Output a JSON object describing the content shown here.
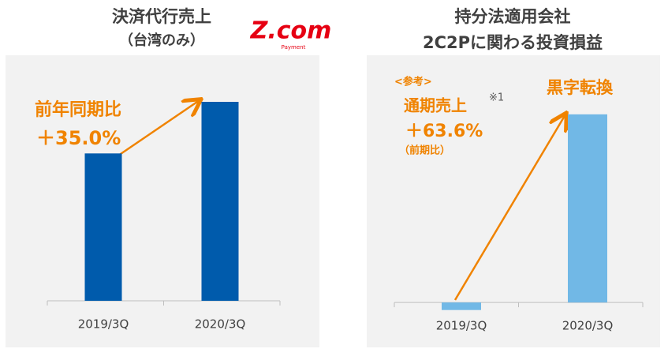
{
  "logo": {
    "brand": "Z.com",
    "sub": "Payment"
  },
  "chart_data": [
    {
      "type": "bar",
      "title": [
        "決済代行売上",
        "（台湾のみ）"
      ],
      "categories": [
        "2019/3Q",
        "2020/3Q"
      ],
      "values": [
        100,
        135
      ],
      "color": "#005bac",
      "ylim": [
        0,
        150
      ],
      "annotations": [
        "前年同期比",
        "＋35.0%"
      ]
    },
    {
      "type": "bar",
      "title": [
        "持分法適用会社",
        "2C2Pに関わる投資損益"
      ],
      "categories": [
        "2019/3Q",
        "2020/3Q"
      ],
      "values": [
        -4,
        100
      ],
      "color": "#71b8e6",
      "ylim": [
        -10,
        110
      ],
      "annotations": [
        "<参考>",
        "通期売上",
        "※1",
        "＋63.6%",
        "（前期比）",
        "黒字転換"
      ]
    }
  ]
}
